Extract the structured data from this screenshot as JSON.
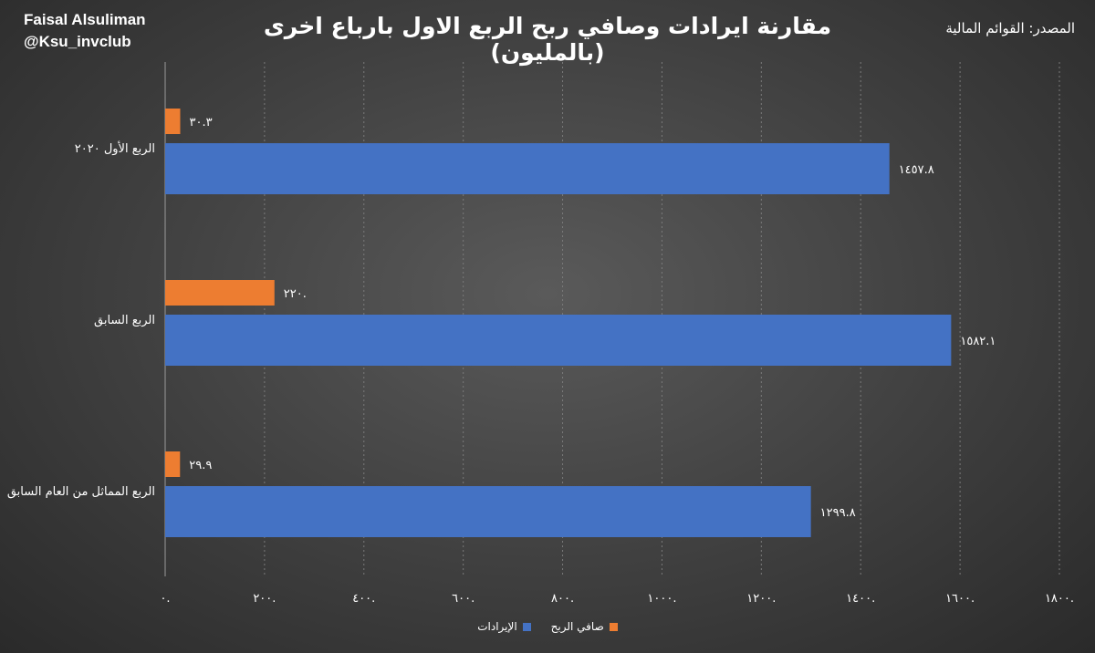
{
  "header": {
    "author_name": "Faisal Alsuliman",
    "author_handle": "@Ksu_invclub",
    "title": "مقارنة ايرادات وصافي ربح الربع الاول بارباع اخرى (بالمليون)",
    "source": "المصدر: القوائم المالية"
  },
  "colors": {
    "revenue": "#4472c4",
    "net_profit": "#ed7d31",
    "grid": "#7a7a7a",
    "text": "#ffffff"
  },
  "chart_data": {
    "type": "bar",
    "orientation": "horizontal",
    "title": "مقارنة ايرادات وصافي ربح الربع الاول بارباع اخرى (بالمليون)",
    "categories": [
      "الربع الأول ٢٠٢٠",
      "الربع السابق",
      "الربع المماثل من العام السابق"
    ],
    "series": [
      {
        "name": "صافي الربح",
        "values": [
          30.3,
          220.0,
          29.9
        ],
        "labels": [
          "٣٠.٣",
          "٢٢٠.",
          "٢٩.٩"
        ]
      },
      {
        "name": "الإيرادات",
        "values": [
          1457.8,
          1582.1,
          1299.8
        ],
        "labels": [
          "١٤٥٧.٨",
          "١٥٨٢.١",
          "١٢٩٩.٨"
        ]
      }
    ],
    "xlim": [
      0,
      1800
    ],
    "x_ticks": [
      0,
      200,
      400,
      600,
      800,
      1000,
      1200,
      1400,
      1600,
      1800
    ],
    "x_tick_labels": [
      "٠.",
      "٢٠٠.",
      "٤٠٠.",
      "٦٠٠.",
      "٨٠٠.",
      "١٠٠٠.",
      "١٢٠٠.",
      "١٤٠٠.",
      "١٦٠٠.",
      "١٨٠٠."
    ],
    "grid": true,
    "legend_position": "bottom"
  },
  "legend": {
    "net_profit": "صافي الربح",
    "revenue": "الإيرادات"
  }
}
